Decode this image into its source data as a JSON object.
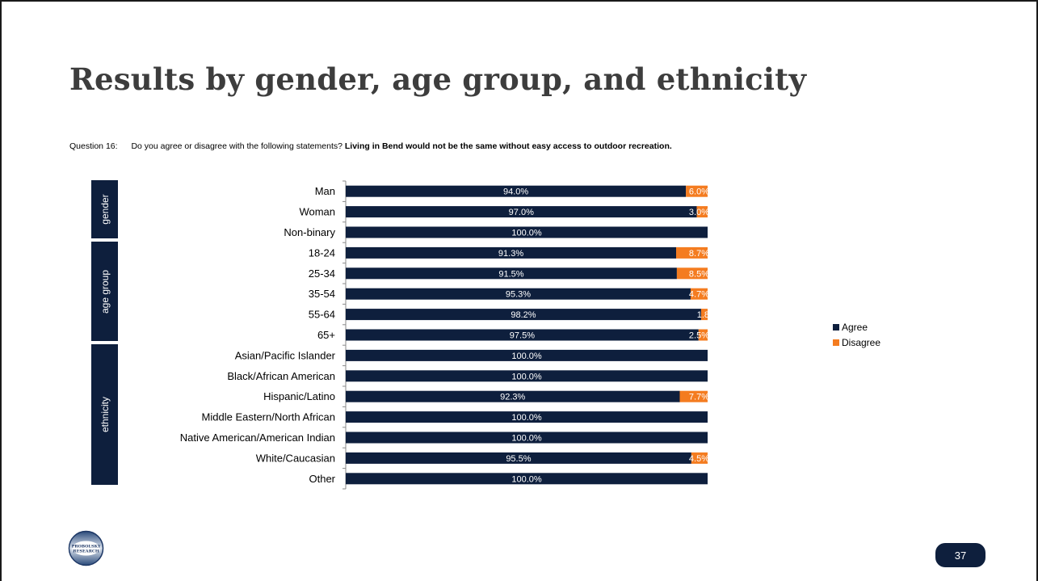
{
  "slide": {
    "title": "Results by gender, age group, and ethnicity",
    "question_label": "Question 16:",
    "question_text": "Do you agree or disagree with the following statements?",
    "question_bold": "Living in Bend would not be the same without easy access to outdoor recreation.",
    "page_number": "37",
    "logo_text": [
      "PROBOLSKY",
      "RESEARCH"
    ]
  },
  "groups": [
    {
      "label": "gender",
      "count": 3
    },
    {
      "label": "age group",
      "count": 5
    },
    {
      "label": "ethnicity",
      "count": 7
    }
  ],
  "colors": {
    "agree": "#0e1f3d",
    "disagree": "#f47c20",
    "group_box": "#0e1f3d"
  },
  "chart_data": {
    "type": "bar",
    "orientation": "horizontal",
    "stacked": true,
    "percent_stacked": true,
    "categories": [
      "Man",
      "Woman",
      "Non-binary",
      "18-24",
      "25-34",
      "35-54",
      "55-64",
      "65+",
      "Asian/Pacific Islander",
      "Black/African American",
      "Hispanic/Latino",
      "Middle Eastern/North African",
      "Native American/American Indian",
      "White/Caucasian",
      "Other"
    ],
    "series": [
      {
        "name": "Agree",
        "values": [
          94.0,
          97.0,
          100.0,
          91.3,
          91.5,
          95.3,
          98.2,
          97.5,
          100.0,
          100.0,
          92.3,
          100.0,
          100.0,
          95.5,
          100.0
        ],
        "labels": [
          "94.0%",
          "97.0%",
          "100.0%",
          "91.3%",
          "91.5%",
          "95.3%",
          "98.2%",
          "97.5%",
          "100.0%",
          "100.0%",
          "92.3%",
          "100.0%",
          "100.0%",
          "95.5%",
          "100.0%"
        ]
      },
      {
        "name": "Disagree",
        "values": [
          6.0,
          3.0,
          0,
          8.7,
          8.5,
          4.7,
          1.8,
          2.5,
          0,
          0,
          7.7,
          0,
          0,
          4.5,
          0
        ],
        "labels": [
          "6.0%",
          "3.0%",
          "",
          "8.7%",
          "8.5%",
          "4.7%",
          "1.8",
          "2.5%",
          "",
          "",
          "7.7%",
          "",
          "",
          "4.5%",
          ""
        ]
      }
    ],
    "xlim": [
      0,
      100
    ],
    "legend": "right"
  }
}
